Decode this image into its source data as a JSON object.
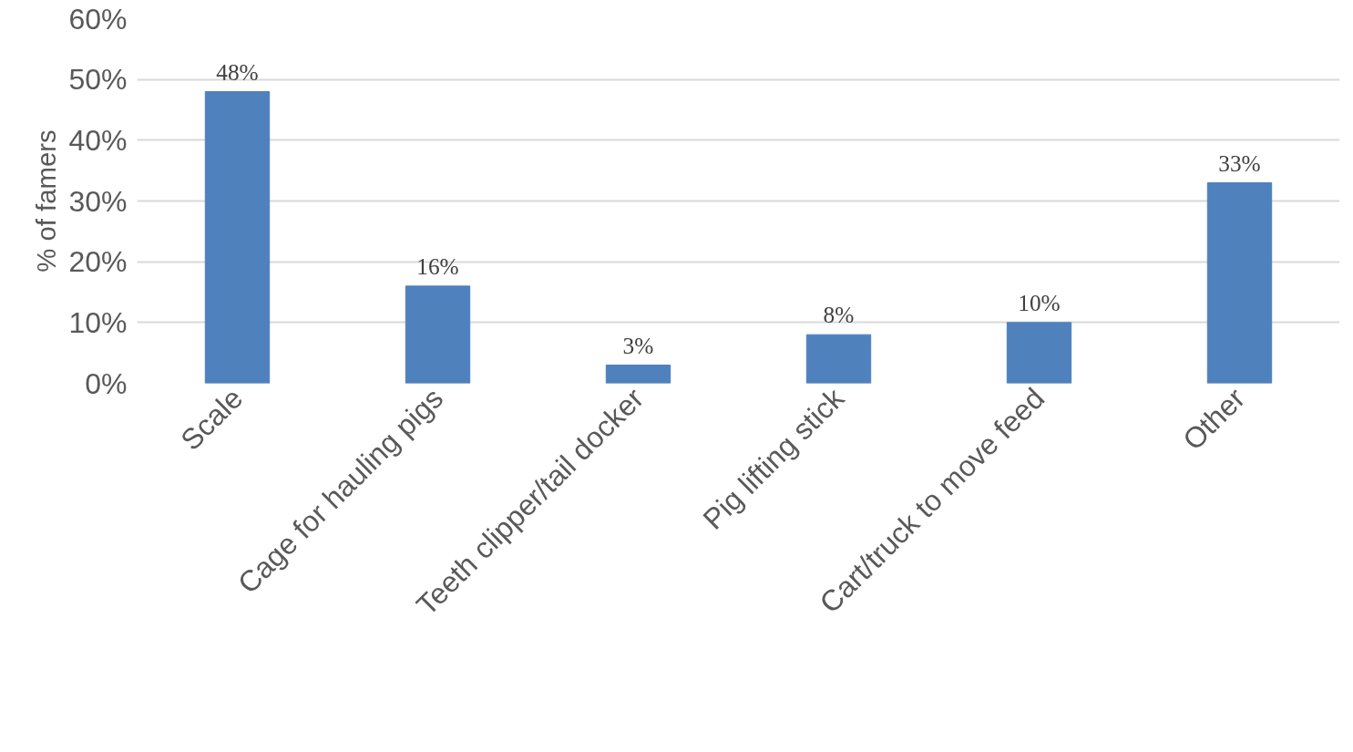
{
  "chart_data": {
    "type": "bar",
    "ylabel": "% of famers",
    "categories": [
      "Scale",
      "Cage for hauling pigs",
      "Teeth clipper/tail docker",
      "Pig lifting stick",
      "Cart/truck to move feed",
      "Other"
    ],
    "values": [
      48,
      16,
      3,
      8,
      10,
      33
    ],
    "value_labels": [
      "48%",
      "16%",
      "3%",
      "8%",
      "10%",
      "33%"
    ],
    "color": "#4f81bd",
    "ylim": [
      0,
      60
    ],
    "yticks": [
      {
        "value": 0,
        "label": "0%"
      },
      {
        "value": 10,
        "label": "10%"
      },
      {
        "value": 20,
        "label": "20%"
      },
      {
        "value": 30,
        "label": "30%"
      },
      {
        "value": 40,
        "label": "40%"
      },
      {
        "value": 50,
        "label": "50%"
      },
      {
        "value": 60,
        "label": "60%"
      }
    ],
    "grid": "y"
  }
}
